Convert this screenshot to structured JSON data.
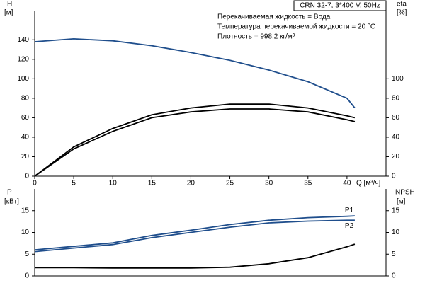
{
  "chart_data": [
    {
      "type": "line",
      "subtitle": "CRN 32-7, 3*400 V, 50Hz",
      "annotations": [
        "Перекачиваемая жидкость = Вода",
        "Температура перекачиваемой жидкости = 20 °C",
        "Плотность = 998.2 кг/м³"
      ],
      "ylabel": "H",
      "yunit": "[м]",
      "y2label": "eta",
      "y2unit": "[%]",
      "xlabel": "Q [м³/ч]",
      "x": [
        0,
        5,
        10,
        15,
        20,
        25,
        30,
        35,
        40,
        41
      ],
      "series": [
        {
          "color": "#1f4e8c",
          "values": [
            138,
            141,
            139,
            134,
            127,
            119,
            109,
            97,
            80,
            70
          ]
        },
        {
          "color": "#000000",
          "axis": "y2",
          "values": [
            0,
            30,
            49,
            63,
            70,
            74,
            74,
            70,
            62,
            60
          ]
        },
        {
          "color": "#000000",
          "axis": "y2",
          "values": [
            0,
            28,
            46,
            60,
            66,
            69,
            69,
            66,
            58,
            56
          ]
        }
      ],
      "xlim": [
        0,
        45
      ],
      "xticks": [
        0,
        5,
        10,
        15,
        20,
        25,
        30,
        35,
        40
      ],
      "ylim": [
        0,
        170
      ],
      "yticks": [
        0,
        20,
        40,
        60,
        80,
        100,
        120,
        140
      ],
      "y2lim": [
        0,
        170
      ],
      "y2ticks": [
        0,
        20,
        40,
        60,
        80,
        100
      ]
    },
    {
      "type": "line",
      "ylabel": "P",
      "yunit": "[кВт]",
      "y2label": "NPSH",
      "y2unit": "[м]",
      "x": [
        0,
        5,
        10,
        15,
        20,
        25,
        30,
        35,
        40,
        41
      ],
      "series": [
        {
          "name": "P1",
          "color": "#1f4e8c",
          "values": [
            6,
            6.8,
            7.6,
            9.3,
            10.5,
            11.8,
            12.8,
            13.4,
            13.7,
            13.8
          ]
        },
        {
          "name": "P2",
          "color": "#1f4e8c",
          "values": [
            5.6,
            6.4,
            7.2,
            8.8,
            10.0,
            11.2,
            12.2,
            12.6,
            12.8,
            12.8
          ]
        },
        {
          "color": "#000000",
          "axis": "y2",
          "values": [
            1.9,
            1.9,
            1.8,
            1.8,
            1.8,
            2.0,
            2.8,
            4.2,
            6.7,
            7.3
          ]
        }
      ],
      "xlim": [
        0,
        45
      ],
      "ylim": [
        0,
        20
      ],
      "yticks": [
        0,
        5,
        10,
        15
      ],
      "y2lim": [
        0,
        20
      ],
      "y2ticks": [
        0,
        5,
        10,
        15
      ]
    }
  ]
}
